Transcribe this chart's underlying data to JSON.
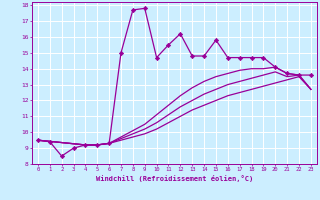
{
  "xlabel": "Windchill (Refroidissement éolien,°C)",
  "bg_color": "#cceeff",
  "line_color": "#990099",
  "grid_color": "#ffffff",
  "xlim": [
    -0.5,
    23.5
  ],
  "ylim": [
    8,
    18.2
  ],
  "xticks": [
    0,
    1,
    2,
    3,
    4,
    5,
    6,
    7,
    8,
    9,
    10,
    11,
    12,
    13,
    14,
    15,
    16,
    17,
    18,
    19,
    20,
    21,
    22,
    23
  ],
  "yticks": [
    8,
    9,
    10,
    11,
    12,
    13,
    14,
    15,
    16,
    17,
    18
  ],
  "series": [
    {
      "x": [
        0,
        1,
        2,
        3,
        4,
        5,
        6,
        7,
        8,
        9,
        10,
        11,
        12,
        13,
        14,
        15,
        16,
        17,
        18,
        19,
        20,
        21,
        22,
        23
      ],
      "y": [
        9.5,
        9.4,
        8.5,
        9.0,
        9.2,
        9.2,
        9.3,
        15.0,
        17.7,
        17.8,
        14.7,
        15.5,
        16.2,
        14.8,
        14.8,
        15.8,
        14.7,
        14.7,
        14.7,
        14.7,
        14.1,
        13.7,
        13.6,
        13.6
      ],
      "has_markers": true
    },
    {
      "x": [
        0,
        4,
        5,
        6,
        7,
        8,
        9,
        10,
        11,
        12,
        13,
        14,
        15,
        16,
        17,
        18,
        19,
        20,
        21,
        22,
        23
      ],
      "y": [
        9.5,
        9.2,
        9.2,
        9.3,
        9.5,
        9.7,
        9.9,
        10.2,
        10.6,
        11.0,
        11.4,
        11.7,
        12.0,
        12.3,
        12.5,
        12.7,
        12.9,
        13.1,
        13.3,
        13.5,
        12.7
      ],
      "has_markers": false
    },
    {
      "x": [
        0,
        4,
        5,
        6,
        7,
        8,
        9,
        10,
        11,
        12,
        13,
        14,
        15,
        16,
        17,
        18,
        19,
        20,
        21,
        22,
        23
      ],
      "y": [
        9.5,
        9.2,
        9.2,
        9.3,
        9.6,
        9.9,
        10.2,
        10.6,
        11.1,
        11.6,
        12.0,
        12.4,
        12.7,
        13.0,
        13.2,
        13.4,
        13.6,
        13.8,
        13.5,
        13.6,
        12.7
      ],
      "has_markers": false
    },
    {
      "x": [
        0,
        4,
        5,
        6,
        7,
        8,
        9,
        10,
        11,
        12,
        13,
        14,
        15,
        16,
        17,
        18,
        19,
        20,
        21,
        22,
        23
      ],
      "y": [
        9.5,
        9.2,
        9.2,
        9.3,
        9.7,
        10.1,
        10.5,
        11.1,
        11.7,
        12.3,
        12.8,
        13.2,
        13.5,
        13.7,
        13.9,
        14.0,
        14.0,
        14.1,
        13.7,
        13.6,
        12.7
      ],
      "has_markers": false
    }
  ]
}
